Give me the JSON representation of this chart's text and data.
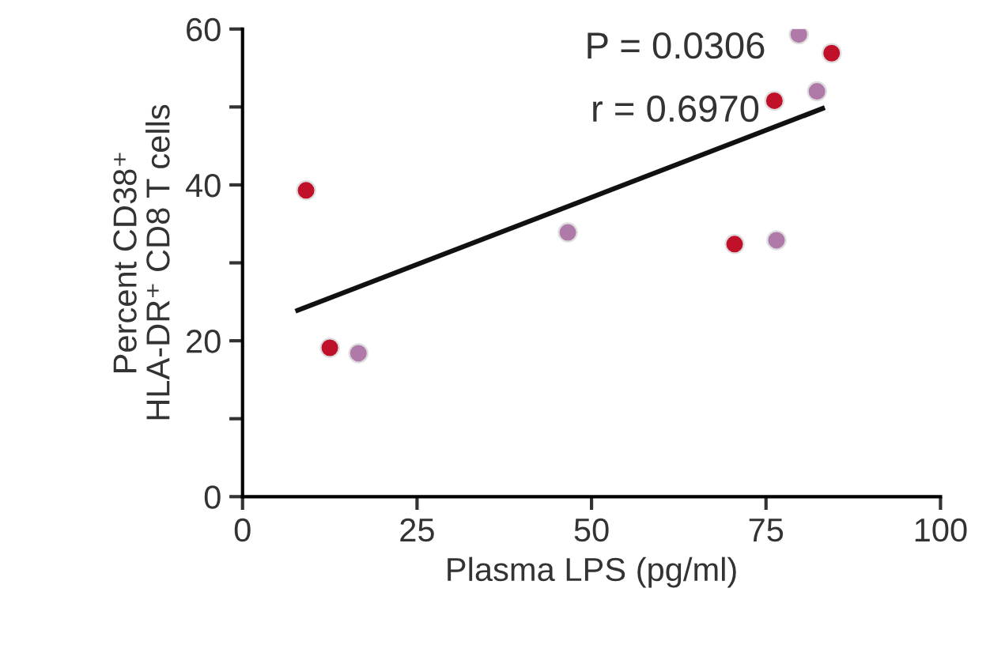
{
  "chart_data": {
    "type": "scatter",
    "xlabel": "Plasma LPS (pg/ml)",
    "ylabel": "Percent CD38⁺\nHLA-DR⁺ CD8 T cells",
    "annotations": [
      "P = 0.0306",
      "r = 0.6970"
    ],
    "xlim": [
      0,
      100
    ],
    "xticks": [
      0,
      25,
      50,
      75,
      100
    ],
    "ylim": [
      0,
      60
    ],
    "yticks": [
      0,
      {
        "value": 10,
        "label": null
      },
      20,
      {
        "value": 30,
        "label": null
      },
      40,
      {
        "value": 50,
        "label": null
      },
      60
    ],
    "grid": false,
    "legend": false,
    "marker": "circle",
    "series": [
      {
        "color": "#c0102a",
        "x": [
          9.1,
          12.5,
          70.5,
          76.2,
          84.4
        ],
        "values": [
          39.3,
          19.1,
          32.4,
          50.8,
          56.9
        ]
      },
      {
        "color": "#b07aa8",
        "x": [
          16.6,
          46.6,
          76.5,
          79.7,
          82.3
        ],
        "values": [
          18.4,
          33.9,
          32.9,
          59.3,
          52.0
        ]
      },
      {
        "type": "line",
        "color": "#111111",
        "marker": "none",
        "line_style": "solid",
        "x": [
          7.9,
          83.1
        ],
        "values": [
          23.9,
          49.8
        ]
      }
    ]
  }
}
